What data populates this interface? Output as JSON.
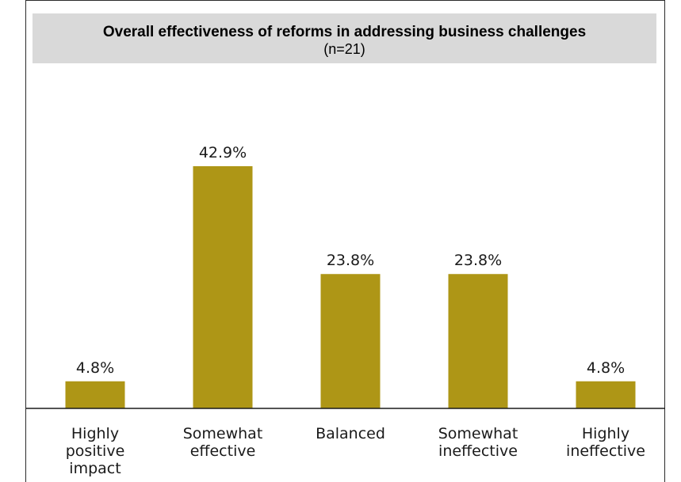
{
  "chart_data": {
    "type": "bar",
    "title": "Overall effectiveness of reforms in addressing business challenges",
    "subtitle": "(n=21)",
    "categories": [
      [
        "Highly",
        "positive",
        "impact"
      ],
      [
        "Somewhat",
        "effective"
      ],
      [
        "Balanced"
      ],
      [
        "Somewhat",
        "ineffective"
      ],
      [
        "Highly",
        "ineffective"
      ]
    ],
    "values": [
      4.8,
      42.9,
      23.8,
      23.8,
      4.8
    ],
    "value_labels": [
      "4.8%",
      "42.9%",
      "23.8%",
      "23.8%",
      "4.8%"
    ],
    "ylim": [
      0,
      42.9
    ],
    "bar_color": "#ae9616",
    "grid": false,
    "legend": "none"
  }
}
